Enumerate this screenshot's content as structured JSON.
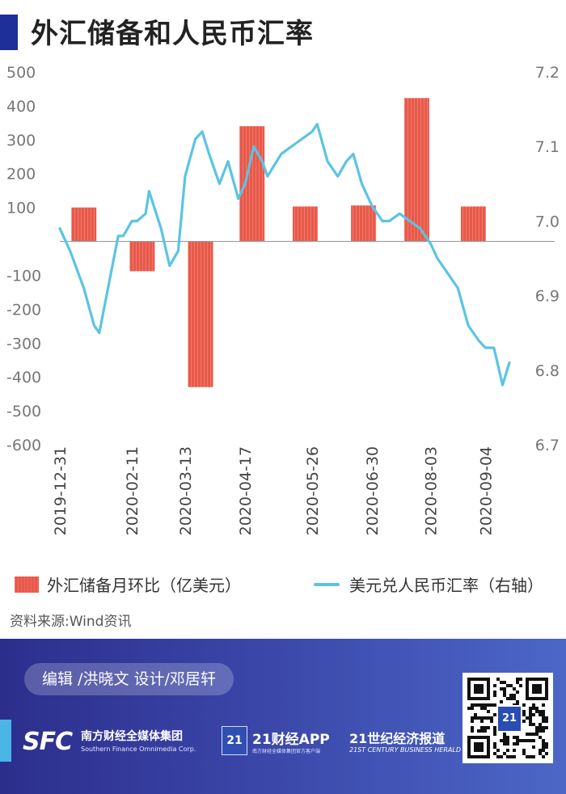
{
  "header": {
    "title": "外汇储备和人民币汇率"
  },
  "chart_data": {
    "type": "bar+line",
    "left_axis": {
      "ticks": [
        "500",
        "400",
        "300",
        "200",
        "100",
        "-100",
        "-200",
        "-300",
        "-400",
        "-500",
        "-600"
      ],
      "ylim": [
        -600,
        500
      ]
    },
    "right_axis": {
      "ticks": [
        "7.2",
        "7.1",
        "7.0",
        "6.9",
        "6.8",
        "6.7"
      ],
      "ylim": [
        6.7,
        7.2
      ]
    },
    "x_ticks": [
      "2019-12-31",
      "2020-02-11",
      "2020-03-13",
      "2020-04-17",
      "2020-05-26",
      "2020-06-30",
      "2020-08-03",
      "2020-09-04"
    ],
    "bar_series": {
      "name": "外汇储备月环比（亿美元）",
      "color": "#e8594a",
      "categories": [
        "2020-01",
        "2020-02",
        "2020-03",
        "2020-04",
        "2020-05",
        "2020-06",
        "2020-07",
        "2020-08"
      ],
      "values": [
        100,
        -88,
        -430,
        340,
        103,
        106,
        423,
        103
      ]
    },
    "line_series": {
      "name": "美元兑人民币汇率（右轴）",
      "color": "#5bc4e4",
      "x": [
        "2019-12-31",
        "2020-01-06",
        "2020-01-14",
        "2020-01-20",
        "2020-01-23",
        "2020-02-03",
        "2020-02-06",
        "2020-02-11",
        "2020-02-14",
        "2020-02-19",
        "2020-02-21",
        "2020-02-28",
        "2020-03-04",
        "2020-03-09",
        "2020-03-13",
        "2020-03-19",
        "2020-03-23",
        "2020-03-27",
        "2020-04-02",
        "2020-04-07",
        "2020-04-13",
        "2020-04-17",
        "2020-04-22",
        "2020-04-27",
        "2020-04-30",
        "2020-05-08",
        "2020-05-14",
        "2020-05-20",
        "2020-05-26",
        "2020-05-29",
        "2020-06-04",
        "2020-06-10",
        "2020-06-15",
        "2020-06-19",
        "2020-06-24",
        "2020-06-30",
        "2020-07-06",
        "2020-07-10",
        "2020-07-16",
        "2020-07-22",
        "2020-07-28",
        "2020-08-03",
        "2020-08-07",
        "2020-08-13",
        "2020-08-19",
        "2020-08-25",
        "2020-08-31",
        "2020-09-04",
        "2020-09-09",
        "2020-09-14",
        "2020-09-18"
      ],
      "values": [
        6.99,
        6.96,
        6.91,
        6.86,
        6.85,
        6.98,
        6.98,
        7.0,
        7.0,
        7.01,
        7.04,
        6.99,
        6.94,
        6.96,
        7.06,
        7.11,
        7.12,
        7.09,
        7.05,
        7.08,
        7.03,
        7.05,
        7.1,
        7.08,
        7.06,
        7.09,
        7.1,
        7.11,
        7.12,
        7.13,
        7.08,
        7.06,
        7.08,
        7.09,
        7.05,
        7.02,
        7.0,
        7.0,
        7.01,
        7.0,
        6.99,
        6.97,
        6.95,
        6.93,
        6.91,
        6.86,
        6.84,
        6.83,
        6.83,
        6.78,
        6.81
      ]
    }
  },
  "legend": {
    "bar_label": "外汇储备月环比（亿美元）",
    "line_label": "美元兑人民币汇率（右轴）"
  },
  "source": "资料来源:Wind资讯",
  "footer": {
    "credits": "编辑 /洪晓文  设计/邓居轩",
    "sfc_logo": "SFC",
    "sfc_cn": "南方财经全媒体集团",
    "sfc_en": "Southern Finance Omnimedia Corp.",
    "app_badge": "21",
    "app_name": "21财经APP",
    "app_sub": "南方财经全媒体集团官方客户端",
    "herald_cn": "21世纪经济报道",
    "herald_en": "21ST CENTURY BUSINESS HERALD",
    "qr_badge": "21"
  }
}
